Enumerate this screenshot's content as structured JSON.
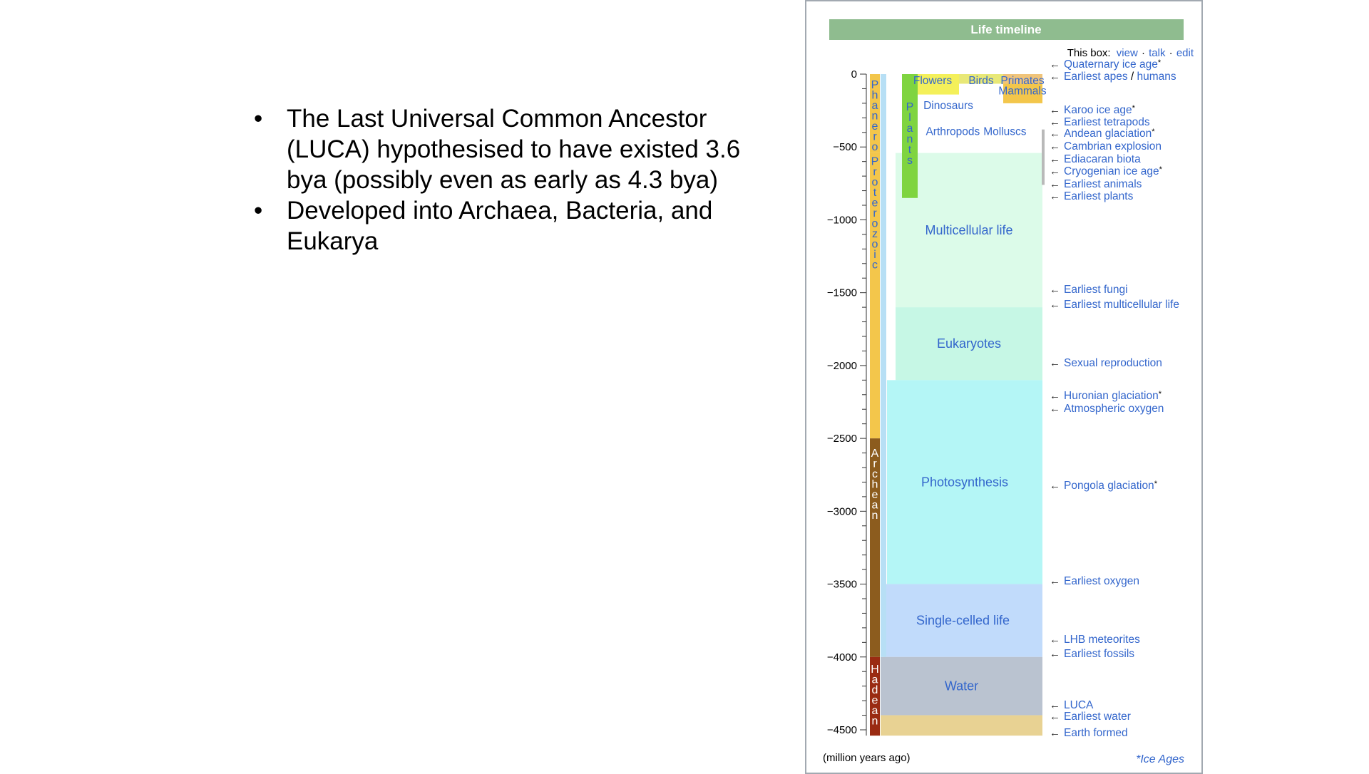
{
  "bullets": [
    "The Last Universal Common Ancestor (LUCA) hypothesised to have existed 3.6 bya (possibly even as early as 4.3 bya)",
    "Developed into Archaea, Bacteria, and Eukarya"
  ],
  "bullet_glyph": "•",
  "timeline": {
    "title": "Life timeline",
    "box_label": "This box:",
    "box_links": [
      "view",
      "talk",
      "edit"
    ],
    "separator": "·",
    "axis_unit": "(million years ago)",
    "ice_ages_note": "*Ice Ages",
    "ticks": [
      0,
      -500,
      -1000,
      -1500,
      -2000,
      -2500,
      -3000,
      -3500,
      -4000,
      -4500
    ],
    "tick_labels": [
      "0",
      "−500",
      "−1000",
      "−1500",
      "−2000",
      "−2500",
      "−3000",
      "−3500",
      "−4000",
      "−4500"
    ],
    "eons": [
      {
        "name": "Phanerozoic",
        "start": -541,
        "end": 0,
        "color": "#f3c64b",
        "text_color": "#3366cc"
      },
      {
        "name": "Proterozoic",
        "start": -2500,
        "end": -541,
        "color": "#f3c64b",
        "text_color": "#3366cc"
      },
      {
        "name": "Archean",
        "start": -4000,
        "end": -2500,
        "color": "#8c5c1e",
        "text_color": "#ffffff"
      },
      {
        "name": "Hadean",
        "start": -4540,
        "end": -4000,
        "color": "#9a2b12",
        "text_color": "#ffffff"
      }
    ],
    "plants_label": "Plants",
    "life_regions": [
      {
        "label": "Multicellular life",
        "start": -1600,
        "end": -541,
        "color": "#dcfbe9"
      },
      {
        "label": "Eukaryotes",
        "start": -2100,
        "end": -1600,
        "color": "#c6f7e5"
      },
      {
        "label": "Photosynthesis",
        "start": -3500,
        "end": -2100,
        "color": "#b4f6f6"
      },
      {
        "label": "Single-celled life",
        "start": -4000,
        "end": -3500,
        "color": "#c1dbfb"
      },
      {
        "label": "Water",
        "start": -4400,
        "end": -4000,
        "color": "#bac3d0"
      },
      {
        "label": "",
        "start": -4540,
        "end": -4400,
        "color": "#e8d293"
      }
    ],
    "phanerozoic_groups": [
      "Flowers",
      "Birds",
      "Primates",
      "Mammals",
      "Dinosaurs",
      "Arthropods",
      "Molluscs"
    ],
    "events": [
      {
        "label": "Quaternary ice age",
        "star": true,
        "mya": -2.6
      },
      {
        "label": "Earliest apes",
        "extra": "humans",
        "mya": -30
      },
      {
        "label": "Karoo ice age",
        "star": true,
        "mya": -300
      },
      {
        "label": "Earliest tetrapods",
        "mya": -370
      },
      {
        "label": "Andean glaciation",
        "star": true,
        "mya": -450
      },
      {
        "label": "Cambrian explosion",
        "mya": -530
      },
      {
        "label": "Ediacaran biota",
        "mya": -610
      },
      {
        "label": "Cryogenian ice age",
        "star": true,
        "mya": -650
      },
      {
        "label": "Earliest animals",
        "mya": -720
      },
      {
        "label": "Earliest plants",
        "mya": -850
      },
      {
        "label": "Earliest fungi",
        "mya": -1500
      },
      {
        "label": "Earliest multicellular life",
        "mya": -1600
      },
      {
        "label": "Sexual reproduction",
        "mya": -2000
      },
      {
        "label": "Huronian glaciation",
        "star": true,
        "mya": -2250
      },
      {
        "label": "Atmospheric oxygen",
        "mya": -2330
      },
      {
        "label": "Pongola glaciation",
        "star": true,
        "mya": -2850
      },
      {
        "label": "Earliest oxygen",
        "mya": -3500
      },
      {
        "label": "LHB meteorites",
        "mya": -3900
      },
      {
        "label": "Earliest fossils",
        "mya": -4000
      },
      {
        "label": "LUCA",
        "mya": -4350
      },
      {
        "label": "Earliest water",
        "mya": -4420
      },
      {
        "label": "Earth formed",
        "mya": -4540
      }
    ],
    "colors": {
      "title_bg": "#8fbc8f",
      "title_text": "#ffffff",
      "link": "#3366cc",
      "plants": "#7fd440",
      "flowers": "#f4f05a",
      "birds": "#e8e877",
      "primates": "#f0c47a",
      "mammals": "#f3c64b",
      "dinosaurs": "#e2b98e",
      "arthropods": "#d9c7b4",
      "lightblue_strip": "#b7dff5"
    }
  }
}
